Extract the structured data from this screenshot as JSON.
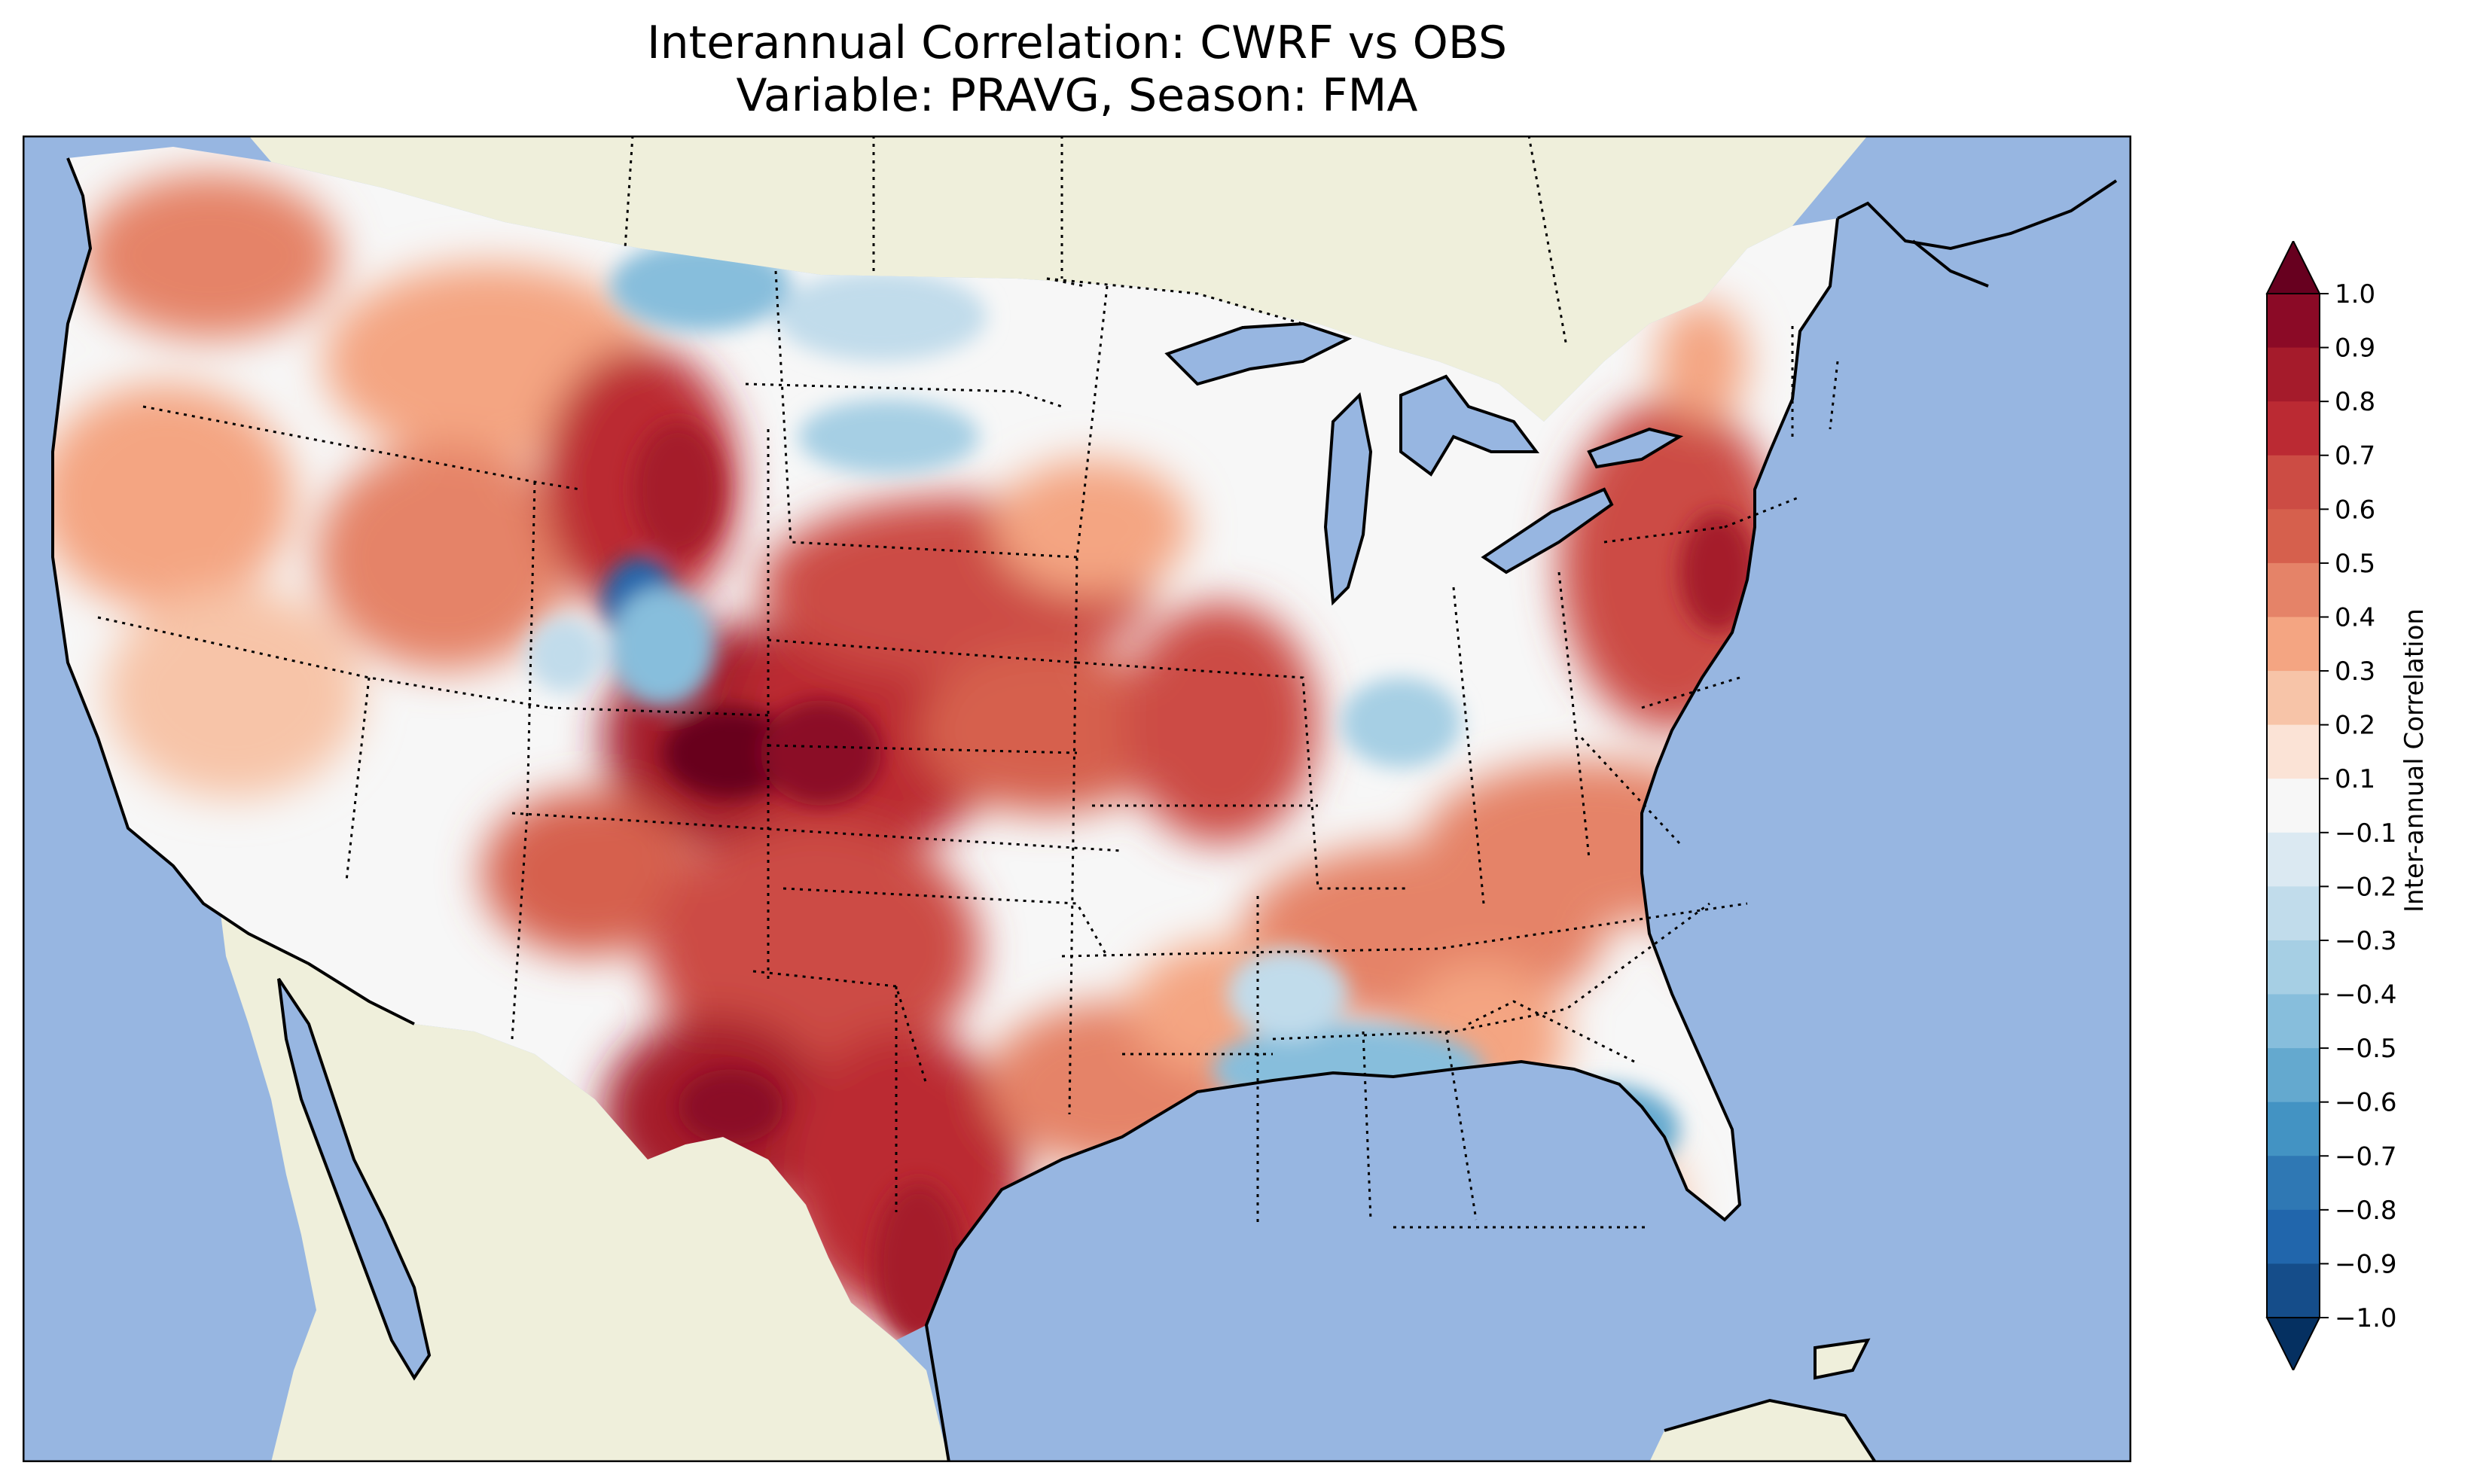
{
  "figure": {
    "title_line1": "Interannual Correlation: CWRF vs OBS",
    "title_line2": "Variable: PRAVG, Season: FMA"
  },
  "colorbar": {
    "label": "Inter-annual Correlation",
    "ticks": [
      "1.0",
      "0.9",
      "0.8",
      "0.7",
      "0.6",
      "0.5",
      "0.4",
      "0.3",
      "0.2",
      "0.1",
      "−0.1",
      "−0.2",
      "−0.3",
      "−0.4",
      "−0.5",
      "−0.6",
      "−0.7",
      "−0.8",
      "−0.9",
      "−1.0"
    ],
    "levels": [
      1.0,
      0.9,
      0.8,
      0.7,
      0.6,
      0.5,
      0.4,
      0.3,
      0.2,
      0.1,
      -0.1,
      -0.2,
      -0.3,
      -0.4,
      -0.5,
      -0.6,
      -0.7,
      -0.8,
      -0.9,
      -1.0
    ],
    "colors": [
      "#67001f",
      "#8b0a26",
      "#a51b2b",
      "#bb2a33",
      "#cc4c44",
      "#d6604d",
      "#e58368",
      "#f4a582",
      "#f7c4a8",
      "#fbe3d6",
      "#f7f7f7",
      "#dbe9f2",
      "#c1dceb",
      "#a6cfe4",
      "#87bedc",
      "#64a9cf",
      "#4393c3",
      "#2f78b4",
      "#2166ac",
      "#154d8a",
      "#053061"
    ],
    "extend": "both",
    "range": [
      -1.0,
      1.0
    ]
  },
  "map": {
    "region": "Contiguous United States",
    "ocean_color": "#97b6e1",
    "land_color": "#efefdb",
    "lake_color": "#97b6e1",
    "colormap": "RdBu_r",
    "features": [
      "coastlines",
      "state borders",
      "country borders",
      "lakes"
    ]
  },
  "chart_data": {
    "type": "heatmap",
    "title": "Interannual Correlation: CWRF vs OBS",
    "subtitle": "Variable: PRAVG, Season: FMA",
    "colorbar_label": "Inter-annual Correlation",
    "value_range": [
      -1.0,
      1.0
    ],
    "regions": [
      {
        "area": "Texas / Southern Plains",
        "correlation": 0.8
      },
      {
        "area": "Colorado / Kansas",
        "correlation": 0.85
      },
      {
        "area": "Wyoming",
        "correlation": 0.75
      },
      {
        "area": "Utah / Colorado Rockies",
        "correlation": -0.6
      },
      {
        "area": "Pacific Northwest",
        "correlation": 0.55
      },
      {
        "area": "Montana / North Dakota border",
        "correlation": -0.5
      },
      {
        "area": "Gulf Coast (MS/AL/FL panhandle)",
        "correlation": -0.55
      },
      {
        "area": "Pennsylvania / New York",
        "correlation": 0.65
      },
      {
        "area": "Georgia / South Carolina",
        "correlation": 0.4
      },
      {
        "area": "Nevada / California",
        "correlation": 0.35
      }
    ]
  }
}
